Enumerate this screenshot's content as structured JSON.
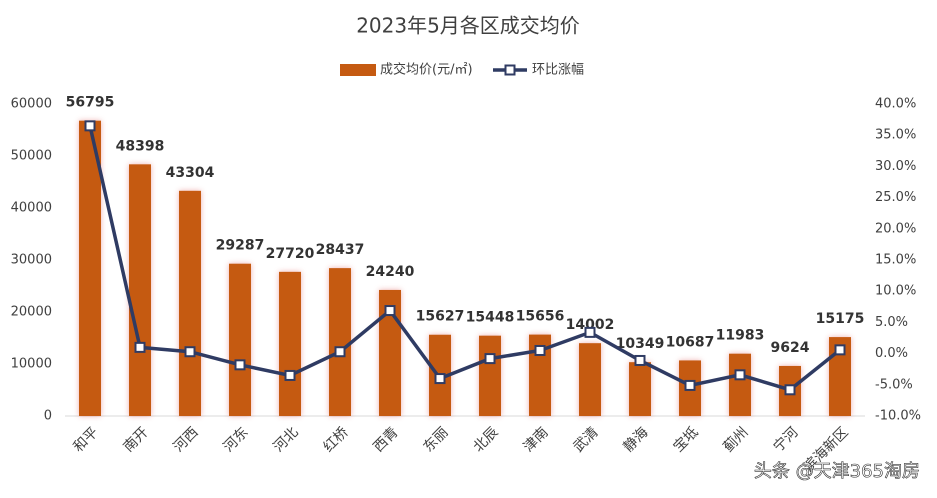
{
  "chart_data": {
    "type": "bar-line",
    "title": "2023年5月各区成交均价",
    "categories": [
      "和平",
      "南开",
      "河西",
      "河东",
      "河北",
      "红桥",
      "西青",
      "东丽",
      "北辰",
      "津南",
      "武清",
      "静海",
      "宝坻",
      "蓟州",
      "宁河",
      "滨海新区"
    ],
    "series": [
      {
        "name": "成交均价(元/㎡)",
        "color": "#c55a11",
        "values": [
          56795,
          48398,
          43304,
          29287,
          27720,
          28437,
          24240,
          15627,
          15448,
          15656,
          14002,
          10349,
          10687,
          11983,
          9624,
          15175
        ]
      },
      {
        "name": "环比涨幅",
        "color": "#2f3b63",
        "axis": "y2",
        "values": [
          36.5,
          1.0,
          0.3,
          -1.8,
          -3.5,
          0.3,
          6.9,
          -4.0,
          -0.8,
          0.5,
          3.4,
          -1.1,
          -5.1,
          -3.4,
          -5.8,
          0.6
        ]
      }
    ],
    "ylim": [
      0,
      60000
    ],
    "yticks": [
      0,
      10000,
      20000,
      30000,
      40000,
      50000,
      60000
    ],
    "y2lim": [
      -10,
      40
    ],
    "y2ticks": [
      {
        "value": -10,
        "label": "-10.0%"
      },
      {
        "value": -5,
        "label": "-5.0%"
      },
      {
        "value": 0,
        "label": "0.0%"
      },
      {
        "value": 5,
        "label": "5.0%"
      },
      {
        "value": 10,
        "label": "10.0%"
      },
      {
        "value": 15,
        "label": "15.0%"
      },
      {
        "value": 20,
        "label": "20.0%"
      },
      {
        "value": 25,
        "label": "25.0%"
      },
      {
        "value": 30,
        "label": "30.0%"
      },
      {
        "value": 35,
        "label": "35.0%"
      },
      {
        "value": 40,
        "label": "40.0%"
      }
    ],
    "legend": "top",
    "watermark": "头条 @天津365淘房"
  }
}
